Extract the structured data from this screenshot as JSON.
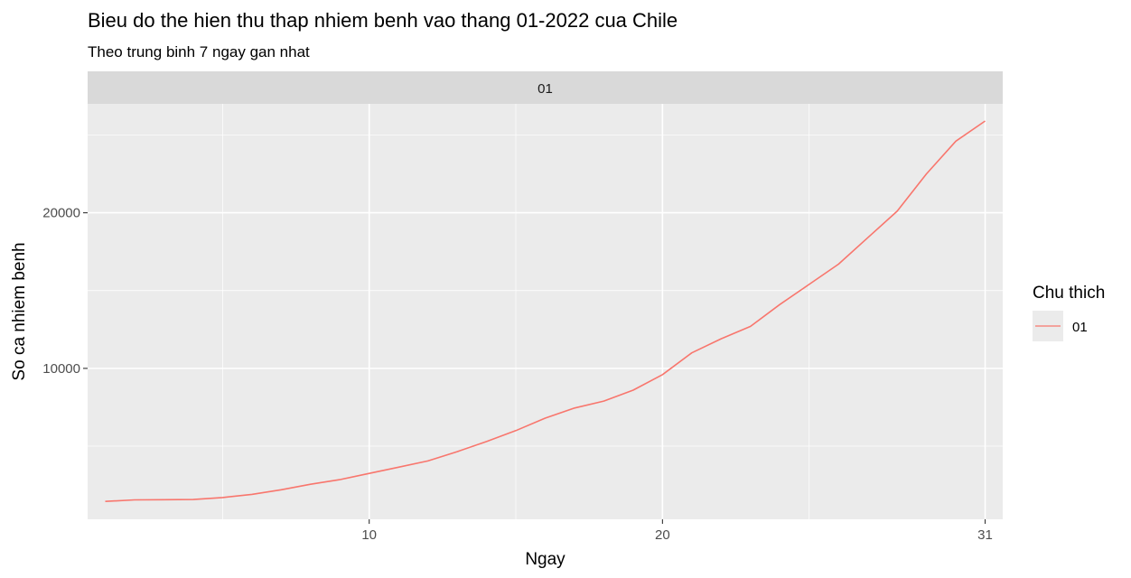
{
  "chart_data": {
    "type": "line",
    "title": "Bieu do the hien thu thap nhiem benh vao thang 01-2022 cua Chile",
    "subtitle": "Theo trung binh 7 ngay gan nhat",
    "xlabel": "Ngay",
    "ylabel": "So ca nhiem benh",
    "facet_label": "01",
    "xlim": [
      0.4,
      31.6
    ],
    "ylim": [
      300,
      27000
    ],
    "x_ticks": [
      10,
      20,
      31
    ],
    "y_ticks": [
      10000,
      20000
    ],
    "x_minor": [
      5,
      15,
      25
    ],
    "y_minor": [
      5000,
      15000,
      25000
    ],
    "grid": true,
    "legend": {
      "title": "Chu thich",
      "position": "right",
      "entries": [
        "01"
      ]
    },
    "series": [
      {
        "name": "01",
        "color": "#F8766D",
        "x": [
          1,
          2,
          3,
          4,
          5,
          6,
          7,
          8,
          9,
          10,
          11,
          12,
          13,
          14,
          15,
          16,
          17,
          18,
          19,
          20,
          21,
          22,
          23,
          24,
          25,
          26,
          27,
          28,
          29,
          30,
          31
        ],
        "y": [
          1450,
          1550,
          1560,
          1570,
          1700,
          1900,
          2200,
          2550,
          2850,
          3250,
          3650,
          4050,
          4650,
          5300,
          6000,
          6800,
          7450,
          7900,
          8600,
          9600,
          11000,
          11900,
          12700,
          14100,
          15400,
          16700,
          18400,
          20100,
          22500,
          24600,
          25900
        ]
      }
    ]
  }
}
